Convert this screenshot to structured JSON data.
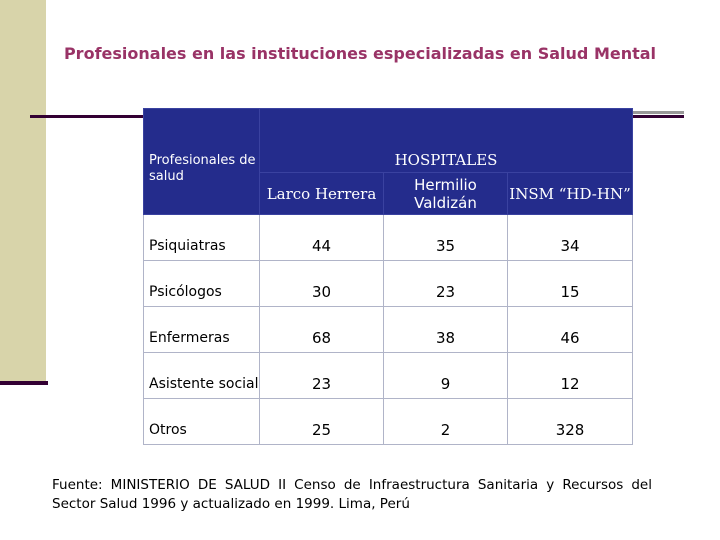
{
  "title": "Profesionales en las instituciones especializadas en Salud Mental",
  "table": {
    "group_header": "HOSPITALES",
    "row_header": "Profesionales de salud",
    "hospitals": [
      "Larco Herrera",
      "Hermilio Valdizán",
      "INSM “HD-HN”"
    ],
    "rows": [
      {
        "label": "Psiquiatras",
        "values": [
          "44",
          "35",
          "34"
        ]
      },
      {
        "label": "Psicólogos",
        "values": [
          "30",
          "23",
          "15"
        ]
      },
      {
        "label": "Enfermeras",
        "values": [
          "68",
          "38",
          "46"
        ]
      },
      {
        "label": "Asistente social",
        "values": [
          "23",
          "9",
          "12"
        ]
      },
      {
        "label": "Otros",
        "values": [
          "25",
          "2",
          "328"
        ]
      }
    ]
  },
  "footnote": "Fuente: MINISTERIO DE SALUD II Censo de Infraestructura Sanitaria y Recursos del Sector Salud 1996 y actualizado en 1999. Lima, Perú",
  "colors": {
    "title": "#993366",
    "header_bg": "#242c8c",
    "side_bar": "#d8d4aa",
    "rule": "#330033"
  }
}
